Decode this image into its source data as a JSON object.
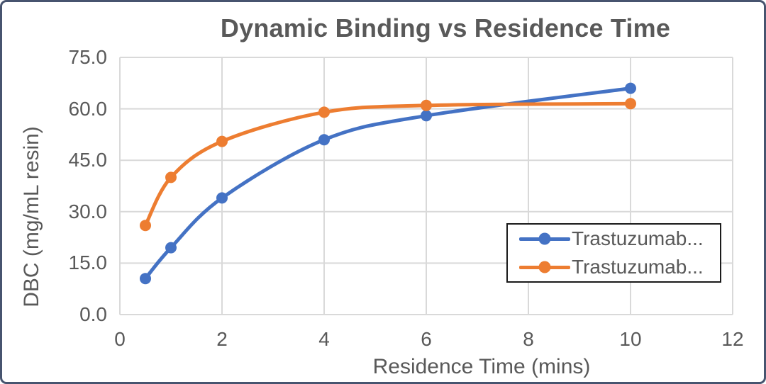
{
  "frame": {
    "border_color": "#47546F",
    "background": "#FFFFFF"
  },
  "chart_data": {
    "type": "line",
    "title": "Dynamic Binding vs Residence Time",
    "xlabel": "Residence Time (mins)",
    "ylabel": "DBC (mg/mL resin)",
    "xlim": [
      0,
      12
    ],
    "ylim": [
      0,
      75
    ],
    "x_tick_values": [
      0,
      2,
      4,
      6,
      8,
      10,
      12
    ],
    "x_tick_labels": [
      "0",
      "2",
      "4",
      "6",
      "8",
      "10",
      "12"
    ],
    "y_tick_values": [
      0,
      15,
      30,
      45,
      60,
      75
    ],
    "y_tick_labels": [
      "0.0",
      "15.0",
      "30.0",
      "45.0",
      "60.0",
      "75.0"
    ],
    "grid": true,
    "gridline_color": "#D9D9D9",
    "smooth_lines": true,
    "legend_position": "inside-middle-right",
    "text_color": "#595959",
    "series": [
      {
        "name": "Trastuzumab...",
        "color": "#4472C4",
        "x": [
          0.5,
          1,
          2,
          4,
          6,
          10
        ],
        "y": [
          10.5,
          19.5,
          34,
          51,
          58,
          66
        ]
      },
      {
        "name": "Trastuzumab...",
        "color": "#ED7D31",
        "x": [
          0.5,
          1,
          2,
          4,
          6,
          10
        ],
        "y": [
          26,
          40,
          50.5,
          59,
          61,
          61.5
        ]
      }
    ]
  }
}
